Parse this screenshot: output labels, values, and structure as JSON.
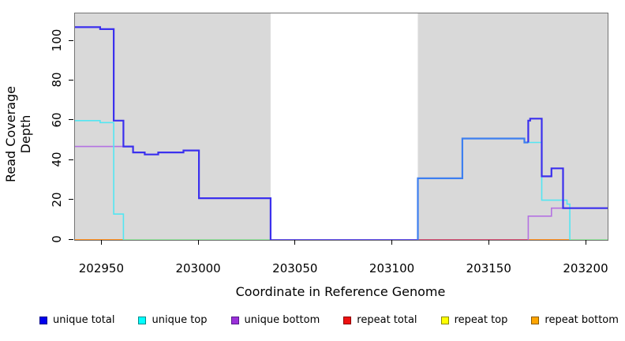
{
  "chart_data": {
    "type": "line",
    "subtype": "step-coverage-plot",
    "title": "",
    "xlabel": "Coordinate in Reference Genome",
    "ylabel": "Read Coverage Depth",
    "xlim": [
      202936,
      203211
    ],
    "ylim": [
      0,
      113.9
    ],
    "x_ticks": [
      202950,
      203000,
      203050,
      203100,
      203150,
      203200
    ],
    "y_ticks": [
      0,
      20,
      40,
      60,
      80,
      100
    ],
    "grid": false,
    "plot_background": "#ffffff",
    "shaded_regions": [
      {
        "name": "left-mappable-region",
        "x0": 202936,
        "x1": 203037,
        "color": "#d9d9d9"
      },
      {
        "name": "right-mappable-region",
        "x0": 203113,
        "x1": 203211,
        "color": "#d9d9d9"
      }
    ],
    "gap_region": {
      "x0": 203037,
      "x1": 203113,
      "color": "#ffffff"
    },
    "series": [
      {
        "name": "zero-line-orange-left",
        "legend": "repeat bottom",
        "color": "#ff8c1a",
        "width": 2,
        "segments": [
          [
            202936,
            202961,
            0
          ]
        ]
      },
      {
        "name": "zero-line-palegreen-left",
        "legend": null,
        "color": "#90e29b",
        "width": 2,
        "segments": [
          [
            202961,
            203037,
            0
          ]
        ]
      },
      {
        "name": "zero-line-gap-blue",
        "legend": "unique total",
        "color": "#5642e6",
        "width": 2,
        "segments": [
          [
            203037,
            203113,
            0
          ]
        ]
      },
      {
        "name": "zero-line-crimson-right",
        "legend": "repeat total",
        "color": "#d44a70",
        "width": 2,
        "segments": [
          [
            203113,
            203170,
            0
          ]
        ]
      },
      {
        "name": "zero-line-orange-right",
        "legend": "repeat bottom",
        "color": "#ff8c1a",
        "width": 2,
        "segments": [
          [
            203170,
            203191.5,
            0
          ]
        ]
      },
      {
        "name": "zero-line-palegreen-right",
        "legend": null,
        "color": "#90e29b",
        "width": 2,
        "segments": [
          [
            203191.5,
            203211,
            0
          ]
        ]
      },
      {
        "name": "unique-bottom-left",
        "legend": "unique bottom",
        "color": "#b472e2",
        "width": 1.6,
        "exit_to": 0,
        "segments": [
          [
            202936,
            202966,
            47
          ],
          [
            202966,
            202972,
            44
          ],
          [
            202972,
            202979,
            43
          ],
          [
            202979,
            202992,
            44
          ],
          [
            202992,
            203000,
            45
          ],
          [
            203000,
            203037,
            21
          ]
        ]
      },
      {
        "name": "unique-bottom-right",
        "legend": "unique bottom",
        "color": "#b472e2",
        "width": 1.6,
        "enter_from": 0,
        "segments": [
          [
            203170,
            203182,
            12
          ],
          [
            203182,
            203211,
            16
          ]
        ]
      },
      {
        "name": "unique-top-left",
        "legend": "unique top",
        "color": "#53e6f2",
        "width": 1.6,
        "exit_to": 0,
        "segments": [
          [
            202936,
            202949,
            60
          ],
          [
            202949,
            202956,
            59
          ],
          [
            202956,
            202961,
            13
          ]
        ]
      },
      {
        "name": "unique-top-right",
        "legend": "unique top",
        "color": "#53e6f2",
        "width": 1.6,
        "exit_to": 0,
        "segments": [
          [
            203170,
            203177,
            49
          ],
          [
            203177,
            203190,
            20
          ],
          [
            203190,
            203191.5,
            18
          ]
        ]
      },
      {
        "name": "unique-total-left",
        "legend": "unique total",
        "color": "#3b30ee",
        "width": 2.2,
        "exit_to": 0,
        "segments": [
          [
            202936,
            202949,
            107
          ],
          [
            202949,
            202956,
            106
          ],
          [
            202956,
            202961,
            60
          ],
          [
            202961,
            202966,
            47
          ],
          [
            202966,
            202972,
            44
          ],
          [
            202972,
            202979,
            43
          ],
          [
            202979,
            202992,
            44
          ],
          [
            202992,
            203000,
            45
          ],
          [
            203000,
            203037,
            21
          ]
        ]
      },
      {
        "name": "unique-total-over-top-right",
        "legend": "unique total",
        "color": "#3d7ff0",
        "width": 2.2,
        "enter_from": 0,
        "segments": [
          [
            203113,
            203136,
            31
          ],
          [
            203136,
            203168,
            51
          ],
          [
            203168,
            203170,
            49
          ]
        ]
      },
      {
        "name": "unique-total-right",
        "legend": "unique total",
        "color": "#3b30ee",
        "width": 2.2,
        "enter_from": 49,
        "segments": [
          [
            203170,
            203171,
            60
          ],
          [
            203171,
            203177,
            61
          ],
          [
            203177,
            203182,
            32
          ],
          [
            203182,
            203188,
            36
          ],
          [
            203188,
            203211,
            16
          ]
        ]
      }
    ],
    "legend": {
      "position": "bottom",
      "items": [
        {
          "label": "unique total",
          "fill": "#0000ee",
          "border": "#00008b"
        },
        {
          "label": "unique top",
          "fill": "#00ffff",
          "border": "#008b8b"
        },
        {
          "label": "unique bottom",
          "fill": "#9b30d9",
          "border": "#551a8b"
        },
        {
          "label": "repeat total",
          "fill": "#ee1111",
          "border": "#8b0000"
        },
        {
          "label": "repeat top",
          "fill": "#ffff00",
          "border": "#8b8b00"
        },
        {
          "label": "repeat bottom",
          "fill": "#ffa500",
          "border": "#8b5a00"
        }
      ]
    }
  }
}
